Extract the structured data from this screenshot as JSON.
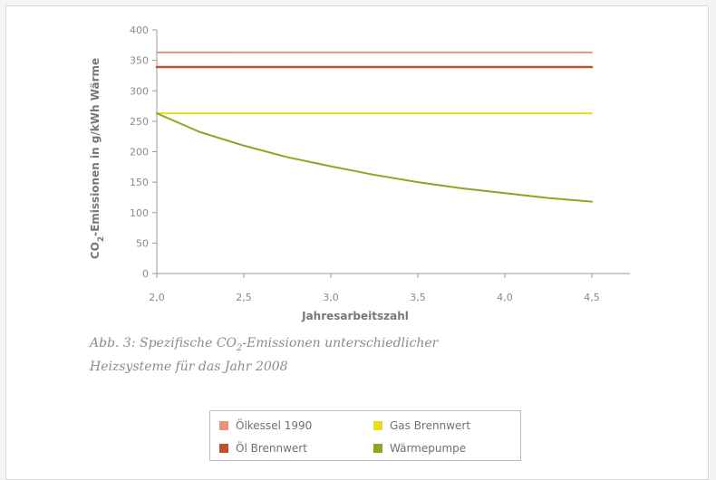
{
  "chart_data": {
    "type": "line",
    "ylabel_main": "CO",
    "ylabel_sub": "2",
    "ylabel_rest": "-Emissionen in g/kWh Wärme",
    "xlabel": "Jahresarbeitszahl",
    "xlim": [
      2.0,
      4.5
    ],
    "ylim": [
      0,
      400
    ],
    "xticks": [
      "2,0",
      "2,5",
      "3,0",
      "3,5",
      "4,0",
      "4,5"
    ],
    "xtick_values": [
      2.0,
      2.5,
      3.0,
      3.5,
      4.0,
      4.5
    ],
    "yticks": [
      "0",
      "50",
      "100",
      "150",
      "200",
      "250",
      "300",
      "350",
      "400"
    ],
    "ytick_values": [
      0,
      50,
      100,
      150,
      200,
      250,
      300,
      350,
      400
    ],
    "grid": false,
    "series": [
      {
        "name": "Ölkessel 1990",
        "color": "#e8947a",
        "x": [
          2.0,
          4.5
        ],
        "y": [
          363,
          363
        ]
      },
      {
        "name": "Öl Brennwert",
        "color": "#c0502a",
        "x": [
          2.0,
          4.5
        ],
        "y": [
          339,
          339
        ]
      },
      {
        "name": "Gas Brennwert",
        "color": "#e6dc22",
        "x": [
          2.0,
          4.5
        ],
        "y": [
          263,
          263
        ]
      },
      {
        "name": "Wärmepumpe",
        "color": "#8fa51e",
        "x": [
          2.0,
          2.25,
          2.5,
          2.75,
          3.0,
          3.25,
          3.5,
          3.75,
          4.0,
          4.25,
          4.5
        ],
        "y": [
          263,
          232,
          210,
          191,
          176,
          162,
          150,
          140,
          132,
          124,
          118
        ]
      }
    ]
  },
  "caption": {
    "line1_pre": "Abb. 3: Spezifische CO",
    "line1_sub": "2",
    "line1_post": "-Emissionen unterschiedlicher",
    "line2": "Heizsysteme für das Jahr 2008"
  },
  "legend": {
    "items": [
      {
        "label": "Ölkessel 1990",
        "color": "#e8947a"
      },
      {
        "label": "Gas Brennwert",
        "color": "#e6dc22"
      },
      {
        "label": "Öl Brennwert",
        "color": "#c0502a"
      },
      {
        "label": "Wärmepumpe",
        "color": "#8fa51e"
      }
    ]
  }
}
